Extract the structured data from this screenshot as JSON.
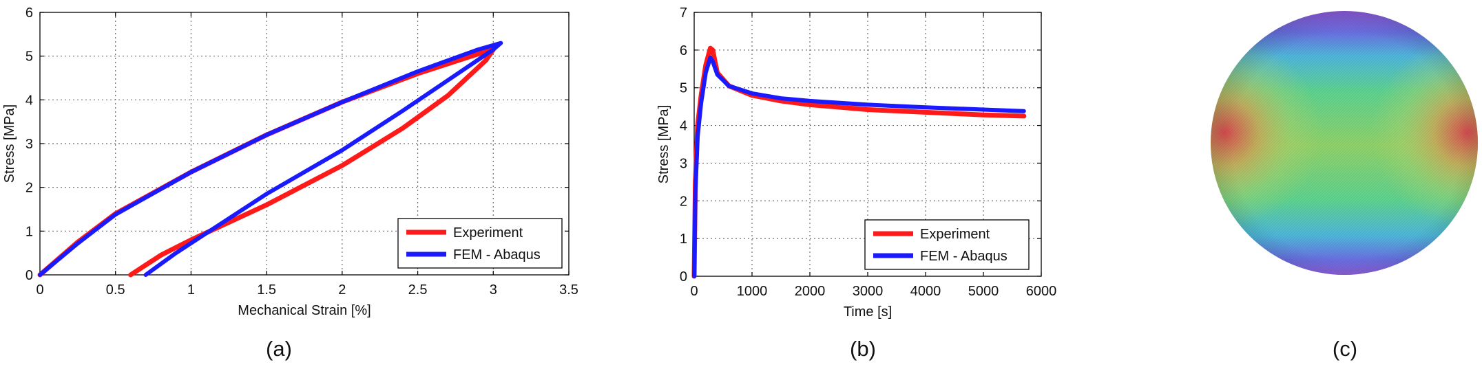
{
  "captions": [
    "(a)",
    "(b)",
    "(c)"
  ],
  "colors": {
    "experiment": "#ff1a1a",
    "fem": "#1a1aff",
    "grid": "#6b6b6b"
  },
  "chart_data": [
    {
      "type": "line",
      "title": "",
      "xlabel": "Mechanical Strain [%]",
      "ylabel": "Stress [MPa]",
      "xlim": [
        0,
        3.5
      ],
      "ylim": [
        0,
        6
      ],
      "xticks": [
        "0",
        "0.5",
        "1",
        "1.5",
        "2",
        "2.5",
        "3",
        "3.5"
      ],
      "yticks": [
        "0",
        "1",
        "2",
        "3",
        "4",
        "5",
        "6"
      ],
      "grid": true,
      "legend_position": "bottom-right",
      "series": [
        {
          "name": "Experiment",
          "x": [
            0,
            0.25,
            0.5,
            1.0,
            1.5,
            2.0,
            2.5,
            2.9,
            3.0,
            2.95,
            2.7,
            2.4,
            2.0,
            1.5,
            1.0,
            0.8,
            0.6
          ],
          "y": [
            0,
            0.75,
            1.4,
            2.35,
            3.2,
            3.95,
            4.6,
            5.05,
            5.15,
            4.9,
            4.1,
            3.35,
            2.5,
            1.6,
            0.8,
            0.45,
            0
          ]
        },
        {
          "name": "FEM - Abaqus",
          "x": [
            0,
            0.25,
            0.5,
            1.0,
            1.5,
            2.0,
            2.5,
            2.9,
            3.05,
            3.0,
            2.7,
            2.4,
            2.0,
            1.5,
            1.1,
            0.9,
            0.7
          ],
          "y": [
            0,
            0.72,
            1.38,
            2.35,
            3.2,
            3.95,
            4.65,
            5.15,
            5.3,
            5.15,
            4.45,
            3.75,
            2.85,
            1.85,
            0.95,
            0.5,
            0
          ]
        }
      ]
    },
    {
      "type": "line",
      "title": "",
      "xlabel": "Time [s]",
      "ylabel": "Stress [MPa]",
      "xlim": [
        0,
        6000
      ],
      "ylim": [
        0,
        7
      ],
      "xticks": [
        "0",
        "1000",
        "2000",
        "3000",
        "4000",
        "5000",
        "6000"
      ],
      "yticks": [
        "0",
        "1",
        "2",
        "3",
        "4",
        "5",
        "6",
        "7"
      ],
      "grid": true,
      "legend_position": "bottom-right",
      "series": [
        {
          "name": "Experiment",
          "x": [
            0,
            20,
            60,
            120,
            200,
            280,
            320,
            400,
            600,
            1000,
            1500,
            2000,
            3000,
            4000,
            5000,
            5700
          ],
          "y": [
            0,
            2.5,
            4.0,
            4.8,
            5.6,
            6.05,
            6.0,
            5.4,
            5.05,
            4.8,
            4.65,
            4.55,
            4.42,
            4.35,
            4.28,
            4.25
          ]
        },
        {
          "name": "FEM - Abaqus",
          "x": [
            0,
            20,
            60,
            120,
            200,
            280,
            320,
            400,
            600,
            1000,
            1500,
            2000,
            3000,
            4000,
            5000,
            5700
          ],
          "y": [
            0,
            2.2,
            3.7,
            4.6,
            5.4,
            5.8,
            5.7,
            5.35,
            5.05,
            4.85,
            4.72,
            4.65,
            4.55,
            4.48,
            4.42,
            4.38
          ]
        }
      ]
    }
  ]
}
